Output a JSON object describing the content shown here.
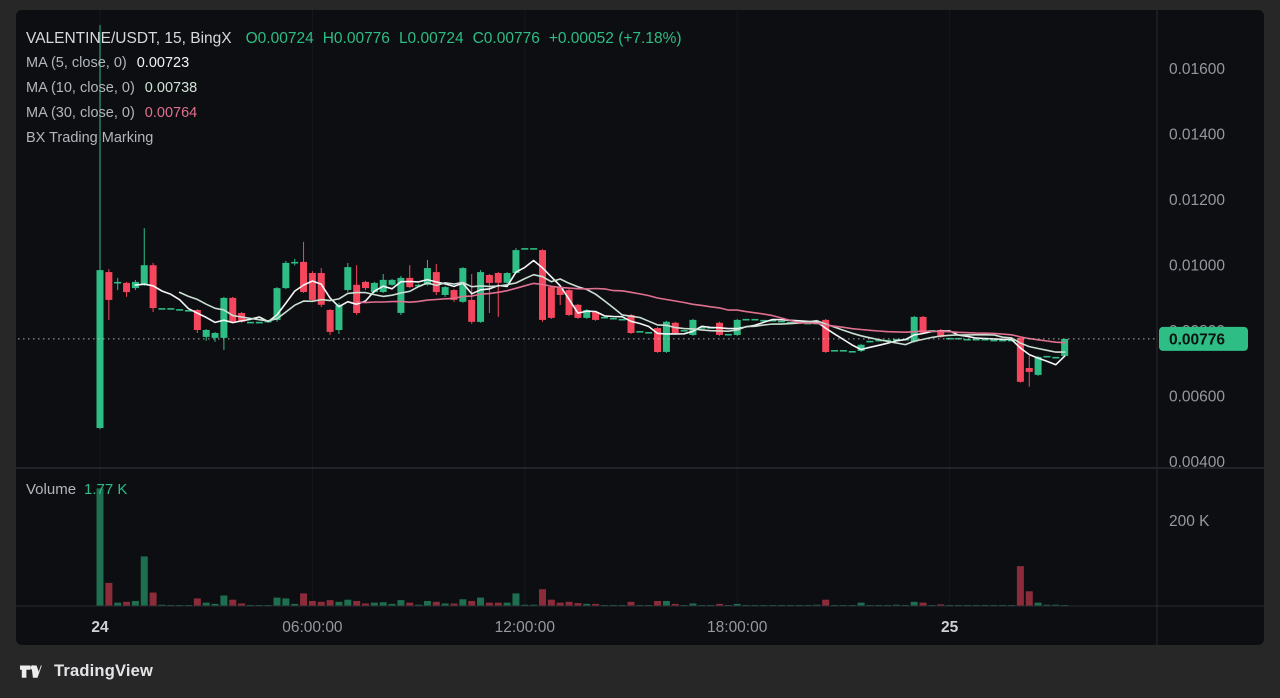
{
  "header": {
    "display": "VALENTINE/USDT, 15, BingX",
    "o": "O0.00724",
    "h": "H0.00776",
    "l": "L0.00724",
    "c": "C0.00776",
    "change": "+0.00052 (+7.18%)"
  },
  "indicators": [
    {
      "label": "MA (5, close, 0)",
      "value": "0.00723"
    },
    {
      "label": "MA (10, close, 0)",
      "value": "0.00738"
    },
    {
      "label": "MA (30, close, 0)",
      "value": "0.00764"
    },
    {
      "label": "BX Trading Marking",
      "value": ""
    }
  ],
  "volume": {
    "label": "Volume",
    "value": "1.77 K",
    "axis_label": "200 K"
  },
  "footer": {
    "brand": "TradingView"
  },
  "chart_data": {
    "type": "candlestick",
    "title": "VALENTINE/USDT 15m BingX",
    "colors": {
      "up": "#2ebd85",
      "down": "#f6465d",
      "last_price_badge": "#2ebd85",
      "axis_text": "#9598a1",
      "axis_text_bold": "#cdd0d5",
      "grid": "#15171c",
      "separator": "#272b33",
      "dotted_price_line": "#b6c9c0"
    },
    "ma": [
      {
        "period": 5,
        "color": "#f4f5f7"
      },
      {
        "period": 10,
        "color": "#cadfd2"
      },
      {
        "period": 30,
        "color": "#e0708f"
      }
    ],
    "price_axis": {
      "labels": [
        {
          "text": "0.01600",
          "price": 0.016
        },
        {
          "text": "0.01400",
          "price": 0.014
        },
        {
          "text": "0.01200",
          "price": 0.012
        },
        {
          "text": "0.01000",
          "price": 0.01
        },
        {
          "text": "0.00800",
          "price": 0.008
        },
        {
          "text": "0.00600",
          "price": 0.006
        },
        {
          "text": "0.00400",
          "price": 0.004
        }
      ],
      "last": {
        "text": "0.00776",
        "value": 0.00776
      }
    },
    "time_axis": {
      "ticks": [
        {
          "label": "24",
          "index": 0,
          "bold": true
        },
        {
          "label": "06:00:00",
          "index": 24,
          "bold": false
        },
        {
          "label": "12:00:00",
          "index": 48,
          "bold": false
        },
        {
          "label": "18:00:00",
          "index": 72,
          "bold": false
        },
        {
          "label": "25",
          "index": 96,
          "bold": true
        }
      ]
    },
    "volume_axis": {
      "label": "200 K",
      "value_k": 200
    },
    "candles_format": [
      "open",
      "high",
      "low",
      "close",
      "volume_k"
    ],
    "candles": [
      [
        0.00504,
        0.01734,
        0.005,
        0.00986,
        280
      ],
      [
        0.0098,
        0.00989,
        0.00834,
        0.00895,
        55
      ],
      [
        0.00947,
        0.00962,
        0.00925,
        0.0095,
        8
      ],
      [
        0.00947,
        0.0095,
        0.00904,
        0.00919,
        10
      ],
      [
        0.00931,
        0.00956,
        0.00925,
        0.0095,
        12
      ],
      [
        0.00941,
        0.01114,
        0.00938,
        0.01001,
        118
      ],
      [
        0.01001,
        0.01008,
        0.00858,
        0.0087,
        32
      ],
      [
        0.0087,
        0.0087,
        0.0087,
        0.0087,
        3
      ],
      [
        0.0087,
        0.0087,
        0.0087,
        0.0087,
        2
      ],
      [
        0.00867,
        0.00867,
        0.00867,
        0.00867,
        2
      ],
      [
        0.00864,
        0.00864,
        0.00864,
        0.00864,
        2
      ],
      [
        0.00864,
        0.00867,
        0.00794,
        0.00803,
        18
      ],
      [
        0.00782,
        0.00806,
        0.0077,
        0.00803,
        8
      ],
      [
        0.00779,
        0.00797,
        0.00767,
        0.00794,
        5
      ],
      [
        0.00779,
        0.00904,
        0.00742,
        0.00901,
        25
      ],
      [
        0.00901,
        0.00904,
        0.00825,
        0.00828,
        15
      ],
      [
        0.00855,
        0.00858,
        0.00825,
        0.00828,
        6
      ],
      [
        0.00828,
        0.00828,
        0.00828,
        0.00828,
        2
      ],
      [
        0.00828,
        0.00828,
        0.00828,
        0.00828,
        2
      ],
      [
        0.00828,
        0.00831,
        0.00828,
        0.00831,
        2
      ],
      [
        0.00834,
        0.00934,
        0.00828,
        0.00931,
        20
      ],
      [
        0.00931,
        0.01014,
        0.00928,
        0.01008,
        18
      ],
      [
        0.01008,
        0.0102,
        0.01,
        0.01011,
        5
      ],
      [
        0.01011,
        0.01072,
        0.00916,
        0.00919,
        30
      ],
      [
        0.00977,
        0.00983,
        0.00889,
        0.00895,
        12
      ],
      [
        0.00977,
        0.00992,
        0.00873,
        0.0088,
        10
      ],
      [
        0.00864,
        0.00867,
        0.00788,
        0.00797,
        14
      ],
      [
        0.00803,
        0.00886,
        0.00791,
        0.0088,
        10
      ],
      [
        0.00925,
        0.01008,
        0.00919,
        0.00995,
        15
      ],
      [
        0.00941,
        0.01001,
        0.00849,
        0.00855,
        12
      ],
      [
        0.0095,
        0.00953,
        0.00925,
        0.00931,
        6
      ],
      [
        0.00919,
        0.0095,
        0.00916,
        0.00947,
        8
      ],
      [
        0.00919,
        0.00974,
        0.00916,
        0.00956,
        9
      ],
      [
        0.00941,
        0.00959,
        0.00938,
        0.00956,
        5
      ],
      [
        0.00855,
        0.00968,
        0.00849,
        0.00962,
        14
      ],
      [
        0.00962,
        0.01001,
        0.00931,
        0.00934,
        8
      ],
      [
        0.00941,
        0.00944,
        0.00938,
        0.00941,
        3
      ],
      [
        0.00941,
        0.01017,
        0.00938,
        0.00992,
        12
      ],
      [
        0.0098,
        0.01005,
        0.0091,
        0.00919,
        10
      ],
      [
        0.0091,
        0.00938,
        0.00904,
        0.00934,
        6
      ],
      [
        0.00925,
        0.00928,
        0.00889,
        0.00895,
        6
      ],
      [
        0.00889,
        0.00995,
        0.00886,
        0.00992,
        16
      ],
      [
        0.00895,
        0.00974,
        0.00822,
        0.00828,
        12
      ],
      [
        0.00828,
        0.00986,
        0.00825,
        0.0098,
        20
      ],
      [
        0.00971,
        0.00974,
        0.00855,
        0.00947,
        8
      ],
      [
        0.00977,
        0.0098,
        0.00843,
        0.00947,
        8
      ],
      [
        0.00947,
        0.0098,
        0.00944,
        0.00977,
        8
      ],
      [
        0.00977,
        0.01053,
        0.00974,
        0.01047,
        30
      ],
      [
        0.01053,
        0.01053,
        0.01053,
        0.01053,
        3
      ],
      [
        0.01053,
        0.01053,
        0.01053,
        0.01053,
        3
      ],
      [
        0.01047,
        0.0105,
        0.00828,
        0.00834,
        40
      ],
      [
        0.00934,
        0.00938,
        0.00837,
        0.0084,
        15
      ],
      [
        0.00934,
        0.00938,
        0.00879,
        0.0091,
        8
      ],
      [
        0.00925,
        0.00928,
        0.00846,
        0.00849,
        10
      ],
      [
        0.0088,
        0.00883,
        0.00837,
        0.0084,
        7
      ],
      [
        0.0084,
        0.00867,
        0.00837,
        0.00864,
        5
      ],
      [
        0.00858,
        0.00861,
        0.00831,
        0.00834,
        5
      ],
      [
        0.00843,
        0.00843,
        0.00843,
        0.00843,
        2
      ],
      [
        0.0084,
        0.0084,
        0.0084,
        0.0084,
        2
      ],
      [
        0.00837,
        0.00837,
        0.00837,
        0.00837,
        2
      ],
      [
        0.00849,
        0.00852,
        0.00791,
        0.00794,
        10
      ],
      [
        0.008,
        0.008,
        0.008,
        0.008,
        2
      ],
      [
        0.00797,
        0.00797,
        0.00797,
        0.00797,
        2
      ],
      [
        0.00809,
        0.00812,
        0.00733,
        0.00736,
        12
      ],
      [
        0.00736,
        0.00831,
        0.00733,
        0.00828,
        12
      ],
      [
        0.00825,
        0.00828,
        0.00791,
        0.00794,
        5
      ],
      [
        0.00803,
        0.00803,
        0.00803,
        0.00803,
        2
      ],
      [
        0.00788,
        0.00837,
        0.00785,
        0.00834,
        6
      ],
      [
        0.00812,
        0.00812,
        0.00812,
        0.00812,
        2
      ],
      [
        0.00812,
        0.00812,
        0.00812,
        0.00812,
        2
      ],
      [
        0.00825,
        0.00828,
        0.00785,
        0.00788,
        5
      ],
      [
        0.00791,
        0.00791,
        0.00791,
        0.00791,
        2
      ],
      [
        0.00788,
        0.00837,
        0.00785,
        0.00834,
        5
      ],
      [
        0.00837,
        0.00837,
        0.00837,
        0.00837,
        2
      ],
      [
        0.00837,
        0.00837,
        0.00837,
        0.00837,
        2
      ],
      [
        0.00834,
        0.00834,
        0.00834,
        0.00834,
        2
      ],
      [
        0.00834,
        0.00834,
        0.00834,
        0.00834,
        2
      ],
      [
        0.00831,
        0.00831,
        0.00831,
        0.00831,
        2
      ],
      [
        0.00828,
        0.00828,
        0.00828,
        0.00828,
        2
      ],
      [
        0.00828,
        0.00828,
        0.00828,
        0.00828,
        2
      ],
      [
        0.00825,
        0.00825,
        0.00825,
        0.00825,
        2
      ],
      [
        0.00825,
        0.00825,
        0.00825,
        0.00825,
        3
      ],
      [
        0.00834,
        0.00837,
        0.00733,
        0.00736,
        15
      ],
      [
        0.00742,
        0.00742,
        0.00742,
        0.00742,
        2
      ],
      [
        0.00742,
        0.00742,
        0.00742,
        0.00742,
        2
      ],
      [
        0.00739,
        0.00739,
        0.00739,
        0.00739,
        2
      ],
      [
        0.00739,
        0.00761,
        0.00736,
        0.00758,
        8
      ],
      [
        0.0077,
        0.0077,
        0.0077,
        0.0077,
        2
      ],
      [
        0.00773,
        0.00773,
        0.00773,
        0.00773,
        2
      ],
      [
        0.00773,
        0.00773,
        0.00773,
        0.00773,
        2
      ],
      [
        0.00776,
        0.00776,
        0.00776,
        0.00776,
        3
      ],
      [
        0.00776,
        0.00776,
        0.00776,
        0.00776,
        2
      ],
      [
        0.00767,
        0.00846,
        0.00764,
        0.00843,
        10
      ],
      [
        0.00843,
        0.00846,
        0.00791,
        0.00794,
        8
      ],
      [
        0.00803,
        0.00803,
        0.00803,
        0.00803,
        2
      ],
      [
        0.00803,
        0.00806,
        0.00779,
        0.00782,
        4
      ],
      [
        0.00779,
        0.00779,
        0.00779,
        0.00779,
        2
      ],
      [
        0.00779,
        0.00779,
        0.00779,
        0.00779,
        2
      ],
      [
        0.00776,
        0.00776,
        0.00776,
        0.00776,
        2
      ],
      [
        0.00776,
        0.00776,
        0.00776,
        0.00776,
        2
      ],
      [
        0.00776,
        0.00776,
        0.00776,
        0.00776,
        2
      ],
      [
        0.00773,
        0.00773,
        0.00773,
        0.00773,
        2
      ],
      [
        0.00773,
        0.00773,
        0.00773,
        0.00773,
        2
      ],
      [
        0.00773,
        0.00773,
        0.00773,
        0.00773,
        2
      ],
      [
        0.00779,
        0.00782,
        0.00642,
        0.00645,
        95
      ],
      [
        0.00687,
        0.00724,
        0.0063,
        0.00675,
        35
      ],
      [
        0.00666,
        0.00724,
        0.00663,
        0.00721,
        8
      ],
      [
        0.00724,
        0.00724,
        0.00724,
        0.00724,
        3
      ],
      [
        0.00721,
        0.00721,
        0.00721,
        0.00721,
        3
      ],
      [
        0.00724,
        0.00776,
        0.00724,
        0.00776,
        1.77
      ]
    ]
  }
}
